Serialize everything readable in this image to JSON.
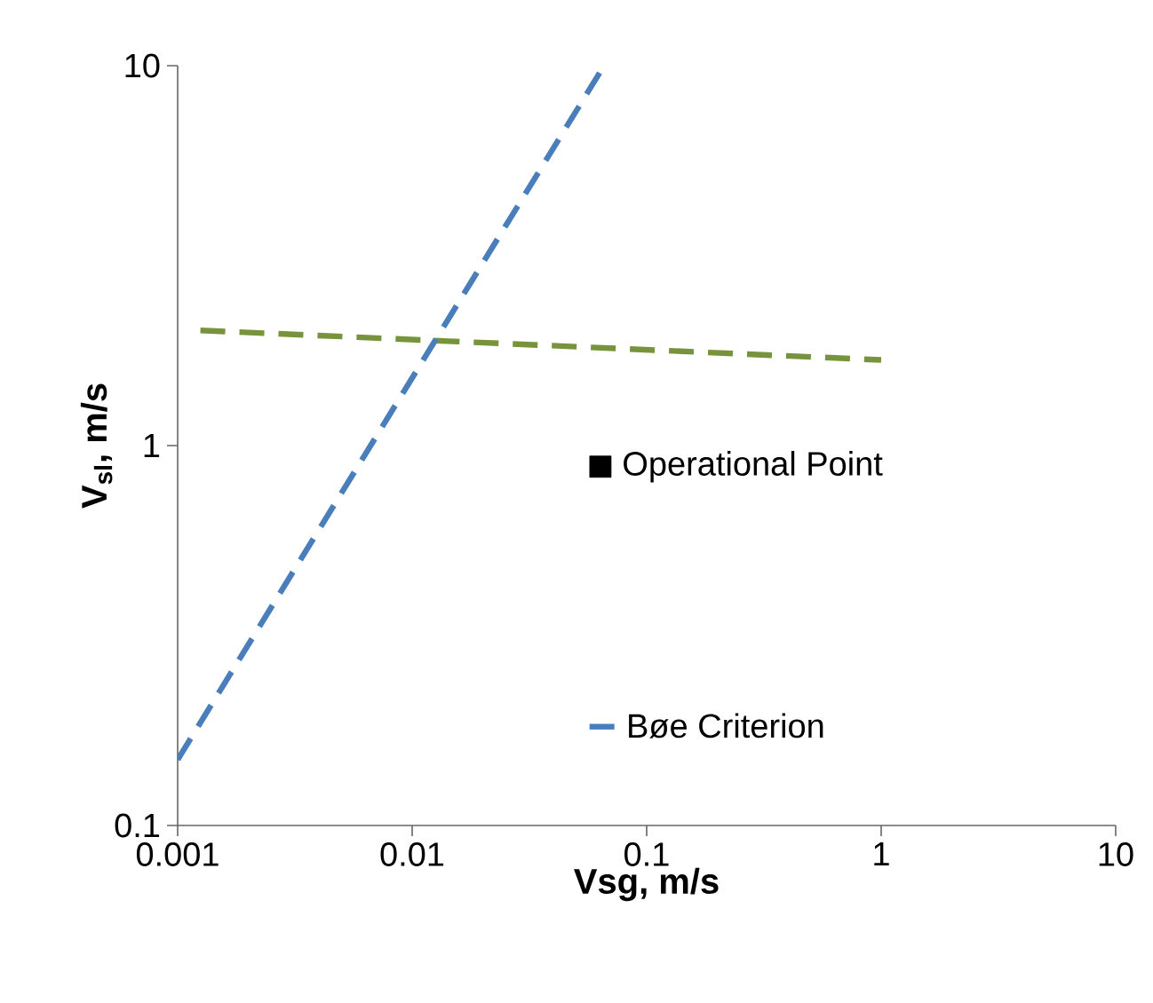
{
  "chart_data": {
    "type": "line",
    "xlabel": "**Vsg, m/s**",
    "ylabel": "**V$_{sl}$, m/s**",
    "log": "xy",
    "xlim": [
      0.001,
      10
    ],
    "ylim": [
      0.1,
      10
    ],
    "xticks": [
      0.001,
      0.01,
      0.1,
      1,
      10
    ],
    "yticks": [
      0.1,
      1,
      10
    ],
    "grid": false,
    "legend": "right",
    "series": [
      {
        "color": "#77933c",
        "line_style": "dashed",
        "x": [
          0.00125,
          1.0
        ],
        "values": [
          2.01,
          1.68
        ]
      },
      {
        "type": "scatter",
        "name": "Operational Point",
        "color": "#000000",
        "marker": "square",
        "x": [
          0.0635
        ],
        "values": [
          0.88
        ]
      },
      {
        "name": "Bøe Criterion",
        "color": "#4a7ebb",
        "line_style": "dashed",
        "x": [
          0.001,
          0.0658
        ],
        "values": [
          0.149,
          10
        ]
      }
    ]
  }
}
